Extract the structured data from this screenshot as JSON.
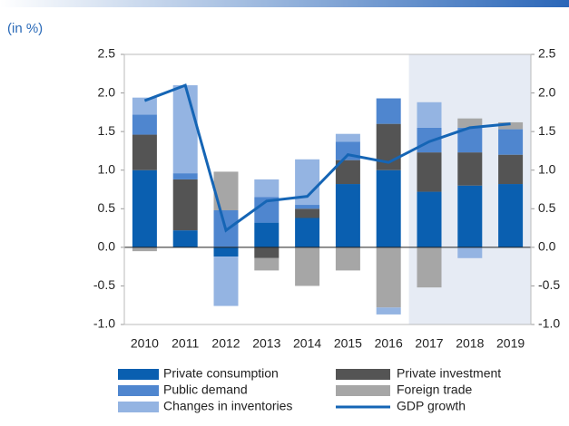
{
  "chart_data": {
    "type": "bar",
    "stacked": true,
    "subtitle": "(in %)",
    "categories": [
      "2010",
      "2011",
      "2012",
      "2013",
      "2014",
      "2015",
      "2016",
      "2017",
      "2018",
      "2019"
    ],
    "series": [
      {
        "name": "Private consumption",
        "color": "#0a5fb0",
        "values": [
          1.0,
          0.22,
          -0.12,
          0.32,
          0.38,
          0.82,
          1.0,
          0.72,
          0.8,
          0.82
        ]
      },
      {
        "name": "Private investment",
        "color": "#545454",
        "values": [
          0.46,
          0.66,
          0,
          -0.14,
          0.12,
          0.31,
          0.6,
          0.51,
          0.43,
          0.38
        ]
      },
      {
        "name": "Public demand",
        "color": "#4f86cf",
        "values": [
          0.26,
          0.08,
          0.48,
          0.33,
          0.05,
          0.24,
          0.33,
          0.32,
          0.32,
          0.33
        ]
      },
      {
        "name": "Foreign trade",
        "color": "#a6a6a6",
        "values": [
          -0.05,
          0,
          0.5,
          -0.16,
          -0.5,
          -0.3,
          -0.78,
          -0.52,
          0.12,
          0.09
        ]
      },
      {
        "name": "Changes in inventories",
        "color": "#94b4e2",
        "values": [
          0.22,
          1.14,
          -0.64,
          0.23,
          0.59,
          0.1,
          -0.09,
          0.33,
          -0.14,
          0
        ]
      },
      {
        "name": "GDP growth",
        "color": "#1565b5",
        "type": "line",
        "values": [
          1.9,
          2.1,
          0.22,
          0.6,
          0.66,
          1.2,
          1.1,
          1.37,
          1.55,
          1.6
        ]
      }
    ],
    "shade": {
      "from": "2017",
      "to": "2019",
      "color": "#e6ebf4"
    },
    "ylim": [
      -1.0,
      2.5
    ],
    "yticks": [
      {
        "value": -1.0,
        "label": "-1.0"
      },
      -0.5,
      {
        "value": 0.0,
        "label": "0.0"
      },
      0.5,
      {
        "value": 1.0,
        "label": "1.0"
      },
      1.5,
      {
        "value": 2.0,
        "label": "2.0"
      },
      2.5
    ],
    "y2lim": [
      -1.0,
      2.5
    ],
    "y2ticks": [
      {
        "value": -1.0,
        "label": "-1.0"
      },
      -0.5,
      {
        "value": 0.0,
        "label": "0.0"
      },
      0.5,
      {
        "value": 1.0,
        "label": "1.0"
      },
      1.5,
      {
        "value": 2.0,
        "label": "2.0"
      },
      2.5
    ],
    "grid": false,
    "legend": "bottom"
  }
}
